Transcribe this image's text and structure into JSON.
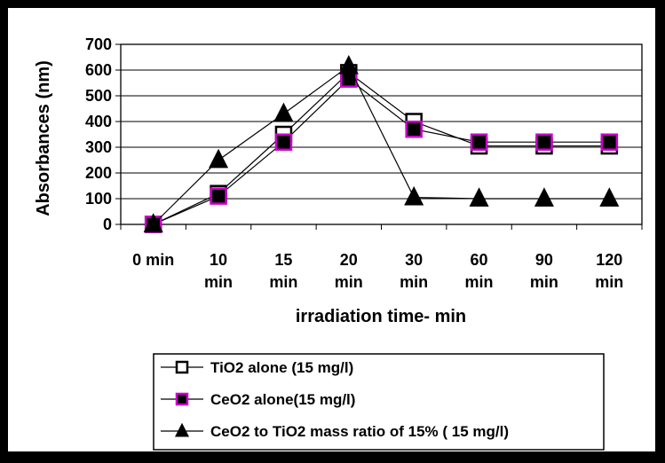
{
  "chart_data": {
    "type": "line",
    "xlabel": "irradiation time- min",
    "ylabel": "Absorbances (nm)",
    "categories": [
      [
        "0 min"
      ],
      [
        "10",
        "min"
      ],
      [
        "15",
        "min"
      ],
      [
        "20",
        "min"
      ],
      [
        "30",
        "min"
      ],
      [
        "60",
        "min"
      ],
      [
        "90",
        "min"
      ],
      [
        "120",
        "min"
      ]
    ],
    "ylim": [
      0,
      700
    ],
    "yticks": [
      0,
      100,
      200,
      300,
      400,
      500,
      600,
      700
    ],
    "grid": "horizontal",
    "legend_position": "bottom-right",
    "series": [
      {
        "name": "TiO2 alone (15 mg/l)",
        "marker": "square",
        "marker_fill": "#ffffff",
        "marker_stroke": "#000000",
        "values": [
          0,
          120,
          350,
          590,
          400,
          305,
          305,
          305
        ]
      },
      {
        "name": "CeO2 alone(15 mg/l)",
        "marker": "square",
        "marker_fill": "#000000",
        "marker_stroke": "#cc00cc",
        "values": [
          0,
          110,
          320,
          565,
          370,
          320,
          320,
          320
        ]
      },
      {
        "name": "CeO2 to  TiO2 mass ratio of 15% ( 15 mg/l)",
        "marker": "triangle",
        "marker_fill": "#000000",
        "marker_stroke": "#000000",
        "values": [
          0,
          250,
          430,
          615,
          105,
          100,
          100,
          100
        ]
      }
    ]
  }
}
